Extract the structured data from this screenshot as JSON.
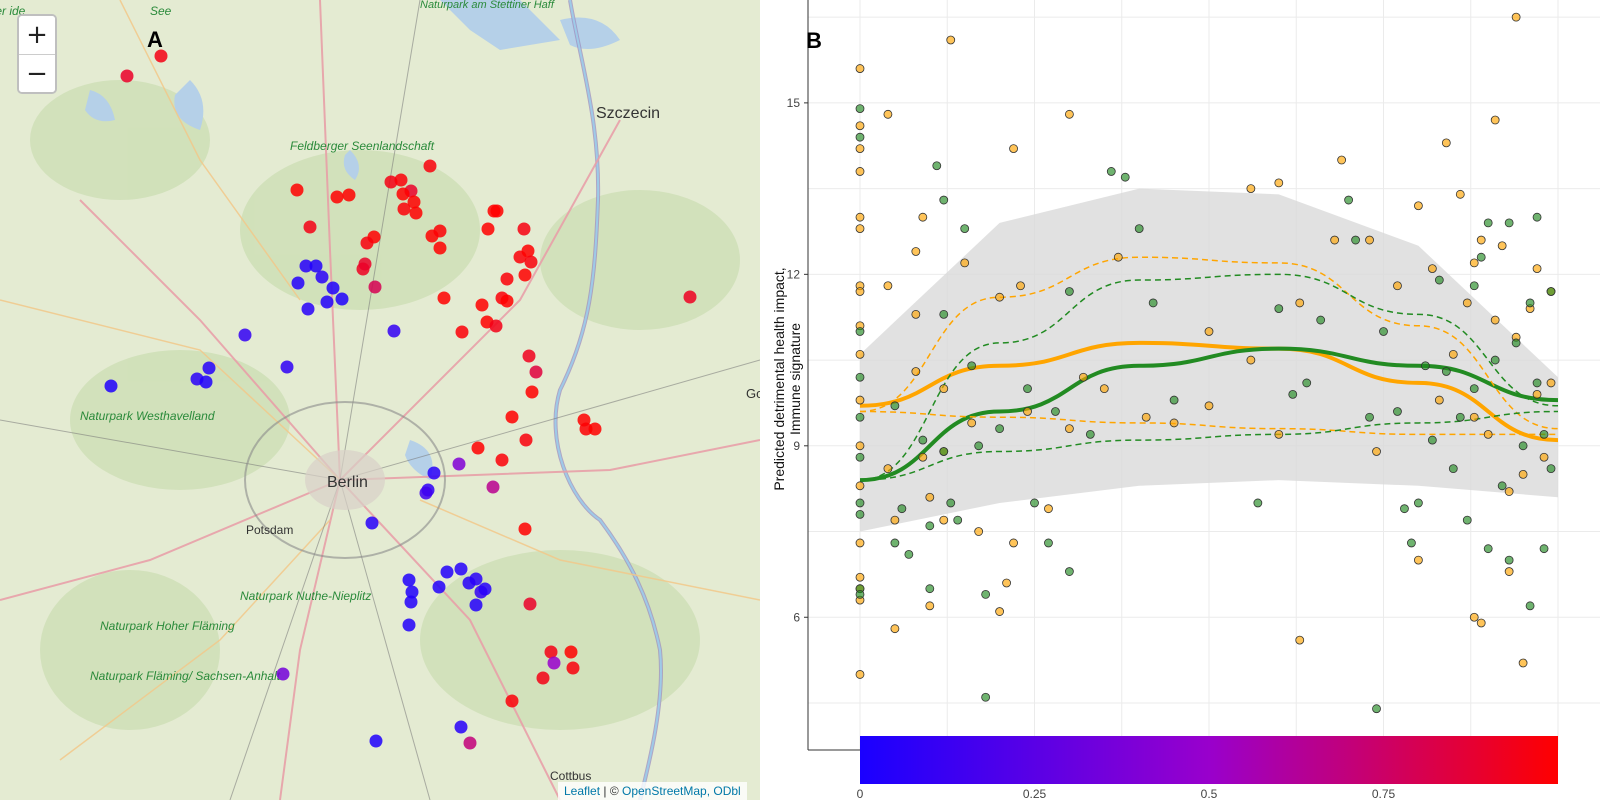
{
  "map": {
    "panel_letter": "A",
    "zoom_in_label": "+",
    "zoom_out_label": "−",
    "attribution": {
      "leaflet": "Leaflet",
      "separator": " | © ",
      "osm": "OpenStreetMap, ODbl"
    },
    "place_labels": [
      "Berlin",
      "Potsdam",
      "Szczecin",
      "Cottbus",
      "Go"
    ],
    "park_labels": [
      "Naturpark am Stettiner Haff",
      "Feldberger Seenlandschaft",
      "Naturpark Westhavelland",
      "Naturpark Nuthe-Nieplitz",
      "Naturpark Hoher Fläming",
      "Naturpark Fläming/ Sachsen-Anhalt",
      "See",
      "inzer ide"
    ],
    "marker_color_low": "#1a00ff",
    "marker_color_high": "#ff0000"
  },
  "plot": {
    "panel_letter": "B",
    "ylabel_line1": "Predicted detrimental health impact,",
    "ylabel_line2": "Immune signature",
    "y_ticks": [
      "6",
      "9",
      "12",
      "15"
    ],
    "colorbar_ticks": [
      "0",
      "0.25",
      "0.5",
      "0.75"
    ],
    "colors": {
      "orange": "#ffa500",
      "green": "#228b22",
      "ribbon": "#cccccc"
    }
  },
  "chart_data": {
    "type": "scatter",
    "title": "",
    "xlabel": "",
    "ylabel": "Predicted detrimental health impact, Immune signature",
    "xlim": [
      0,
      1
    ],
    "ylim": [
      3.8,
      16.8
    ],
    "y_ticks": [
      6,
      9,
      12,
      15
    ],
    "colorbar": {
      "range": [
        0,
        1
      ],
      "ticks": [
        0,
        0.25,
        0.5,
        0.75
      ],
      "low": "#1a00ff",
      "mid": "#9900cc",
      "high": "#ff0000"
    },
    "series": [
      {
        "color": "#ffa500",
        "points": [
          [
            0,
            15.6
          ],
          [
            0,
            14.6
          ],
          [
            0,
            14.2
          ],
          [
            0,
            13.8
          ],
          [
            0,
            13.0
          ],
          [
            0,
            12.8
          ],
          [
            0,
            11.8
          ],
          [
            0,
            11.7
          ],
          [
            0,
            11.1
          ],
          [
            0,
            10.6
          ],
          [
            0,
            9.8
          ],
          [
            0,
            9.0
          ],
          [
            0,
            8.3
          ],
          [
            0,
            7.3
          ],
          [
            0,
            6.7
          ],
          [
            0,
            6.5
          ],
          [
            0,
            6.3
          ],
          [
            0,
            5.0
          ],
          [
            0.04,
            14.8
          ],
          [
            0.04,
            11.8
          ],
          [
            0.04,
            8.6
          ],
          [
            0.05,
            7.7
          ],
          [
            0.05,
            5.8
          ],
          [
            0.08,
            12.4
          ],
          [
            0.08,
            11.3
          ],
          [
            0.08,
            10.3
          ],
          [
            0.09,
            13.0
          ],
          [
            0.09,
            8.8
          ],
          [
            0.1,
            8.1
          ],
          [
            0.1,
            6.2
          ],
          [
            0.12,
            10.0
          ],
          [
            0.12,
            7.7
          ],
          [
            0.13,
            16.1
          ],
          [
            0.15,
            12.2
          ],
          [
            0.16,
            9.4
          ],
          [
            0.17,
            7.5
          ],
          [
            0.2,
            11.6
          ],
          [
            0.22,
            14.2
          ],
          [
            0.22,
            7.3
          ],
          [
            0.23,
            11.8
          ],
          [
            0.24,
            9.6
          ],
          [
            0.3,
            14.8
          ],
          [
            0.3,
            9.3
          ],
          [
            0.35,
            10.0
          ],
          [
            0.37,
            12.3
          ],
          [
            0.5,
            9.7
          ],
          [
            0.5,
            11.0
          ],
          [
            0.56,
            13.5
          ],
          [
            0.56,
            10.5
          ],
          [
            0.6,
            13.6
          ],
          [
            0.6,
            9.2
          ],
          [
            0.63,
            11.5
          ],
          [
            0.68,
            12.6
          ],
          [
            0.69,
            14.0
          ],
          [
            0.73,
            12.6
          ],
          [
            0.74,
            8.9
          ],
          [
            0.77,
            11.8
          ],
          [
            0.8,
            13.2
          ],
          [
            0.8,
            7.0
          ],
          [
            0.82,
            12.1
          ],
          [
            0.83,
            9.8
          ],
          [
            0.84,
            14.3
          ],
          [
            0.85,
            10.6
          ],
          [
            0.86,
            13.4
          ],
          [
            0.87,
            11.5
          ],
          [
            0.88,
            12.2
          ],
          [
            0.88,
            9.5
          ],
          [
            0.88,
            6.0
          ],
          [
            0.89,
            5.9
          ],
          [
            0.89,
            12.6
          ],
          [
            0.9,
            9.2
          ],
          [
            0.91,
            14.7
          ],
          [
            0.91,
            11.2
          ],
          [
            0.92,
            12.5
          ],
          [
            0.93,
            8.2
          ],
          [
            0.93,
            6.8
          ],
          [
            0.94,
            10.9
          ],
          [
            0.94,
            16.5
          ],
          [
            0.95,
            8.5
          ],
          [
            0.95,
            5.2
          ],
          [
            0.96,
            11.4
          ],
          [
            0.97,
            9.9
          ],
          [
            0.97,
            12.1
          ],
          [
            0.98,
            8.8
          ],
          [
            0.99,
            10.1
          ],
          [
            0.99,
            11.7
          ],
          [
            0.63,
            5.6
          ],
          [
            0.41,
            9.5
          ],
          [
            0.12,
            8.9
          ],
          [
            0.2,
            6.1
          ],
          [
            0.21,
            6.6
          ],
          [
            0.27,
            7.9
          ],
          [
            0.32,
            10.2
          ],
          [
            0.45,
            9.4
          ]
        ]
      },
      {
        "color": "#228b22",
        "points": [
          [
            0,
            14.9
          ],
          [
            0,
            14.4
          ],
          [
            0,
            11.0
          ],
          [
            0,
            10.2
          ],
          [
            0,
            9.5
          ],
          [
            0,
            8.8
          ],
          [
            0,
            8.0
          ],
          [
            0,
            7.8
          ],
          [
            0,
            6.5
          ],
          [
            0,
            6.4
          ],
          [
            0.05,
            9.7
          ],
          [
            0.05,
            7.3
          ],
          [
            0.06,
            7.9
          ],
          [
            0.07,
            7.1
          ],
          [
            0.09,
            9.1
          ],
          [
            0.1,
            7.6
          ],
          [
            0.1,
            6.5
          ],
          [
            0.11,
            13.9
          ],
          [
            0.12,
            13.3
          ],
          [
            0.12,
            11.3
          ],
          [
            0.12,
            8.9
          ],
          [
            0.13,
            8.0
          ],
          [
            0.14,
            7.7
          ],
          [
            0.15,
            12.8
          ],
          [
            0.16,
            10.4
          ],
          [
            0.17,
            9.0
          ],
          [
            0.18,
            6.4
          ],
          [
            0.18,
            4.6
          ],
          [
            0.2,
            9.3
          ],
          [
            0.24,
            10.0
          ],
          [
            0.25,
            8.0
          ],
          [
            0.27,
            7.3
          ],
          [
            0.28,
            9.6
          ],
          [
            0.3,
            11.7
          ],
          [
            0.3,
            6.8
          ],
          [
            0.33,
            9.2
          ],
          [
            0.36,
            13.8
          ],
          [
            0.38,
            13.7
          ],
          [
            0.4,
            12.8
          ],
          [
            0.42,
            11.5
          ],
          [
            0.45,
            9.8
          ],
          [
            0.57,
            8.0
          ],
          [
            0.6,
            11.4
          ],
          [
            0.62,
            9.9
          ],
          [
            0.64,
            10.1
          ],
          [
            0.66,
            11.2
          ],
          [
            0.7,
            13.3
          ],
          [
            0.71,
            12.6
          ],
          [
            0.73,
            9.5
          ],
          [
            0.74,
            4.4
          ],
          [
            0.75,
            11.0
          ],
          [
            0.77,
            9.6
          ],
          [
            0.78,
            7.9
          ],
          [
            0.79,
            7.3
          ],
          [
            0.8,
            8.0
          ],
          [
            0.81,
            10.4
          ],
          [
            0.82,
            9.1
          ],
          [
            0.83,
            11.9
          ],
          [
            0.84,
            10.3
          ],
          [
            0.85,
            8.6
          ],
          [
            0.86,
            9.5
          ],
          [
            0.87,
            7.7
          ],
          [
            0.88,
            11.8
          ],
          [
            0.88,
            10.0
          ],
          [
            0.89,
            12.3
          ],
          [
            0.9,
            7.2
          ],
          [
            0.9,
            12.9
          ],
          [
            0.91,
            10.5
          ],
          [
            0.92,
            8.3
          ],
          [
            0.93,
            12.9
          ],
          [
            0.93,
            7.0
          ],
          [
            0.94,
            10.8
          ],
          [
            0.95,
            9.0
          ],
          [
            0.96,
            11.5
          ],
          [
            0.96,
            6.2
          ],
          [
            0.97,
            13.0
          ],
          [
            0.97,
            10.1
          ],
          [
            0.98,
            9.2
          ],
          [
            0.98,
            7.2
          ],
          [
            0.99,
            11.7
          ],
          [
            0.99,
            8.6
          ]
        ]
      }
    ],
    "smooth": [
      {
        "color": "#ffa500",
        "role": "fit",
        "x": [
          0,
          0.2,
          0.4,
          0.6,
          0.8,
          1.0
        ],
        "y": [
          9.7,
          10.4,
          10.8,
          10.7,
          10.1,
          9.1
        ]
      },
      {
        "color": "#228b22",
        "role": "fit",
        "x": [
          0,
          0.2,
          0.4,
          0.6,
          0.8,
          1.0
        ],
        "y": [
          8.4,
          9.6,
          10.4,
          10.7,
          10.4,
          9.8
        ]
      },
      {
        "color": "#ffa500",
        "role": "upper",
        "x": [
          0,
          0.2,
          0.4,
          0.6,
          0.8,
          1.0
        ],
        "y": [
          9.6,
          11.6,
          12.3,
          12.2,
          11.1,
          9.3
        ]
      },
      {
        "color": "#ffa500",
        "role": "lower",
        "x": [
          0,
          0.2,
          0.4,
          0.6,
          0.8,
          1.0
        ],
        "y": [
          9.6,
          9.5,
          9.4,
          9.3,
          9.2,
          9.2
        ]
      },
      {
        "color": "#228b22",
        "role": "upper",
        "x": [
          0,
          0.2,
          0.4,
          0.6,
          0.8,
          1.0
        ],
        "y": [
          8.4,
          10.8,
          11.9,
          12.0,
          11.3,
          9.7
        ]
      },
      {
        "color": "#228b22",
        "role": "lower",
        "x": [
          0,
          0.2,
          0.4,
          0.6,
          0.8,
          1.0
        ],
        "y": [
          8.4,
          8.9,
          9.1,
          9.2,
          9.4,
          9.6
        ]
      }
    ],
    "ribbons": [
      {
        "x": [
          0,
          0.2,
          0.4,
          0.6,
          0.8,
          1.0
        ],
        "upper": [
          10.6,
          12.9,
          13.5,
          13.4,
          12.5,
          10.2
        ],
        "lower": [
          7.5,
          8.0,
          8.3,
          8.4,
          8.3,
          8.1
        ]
      }
    ]
  }
}
